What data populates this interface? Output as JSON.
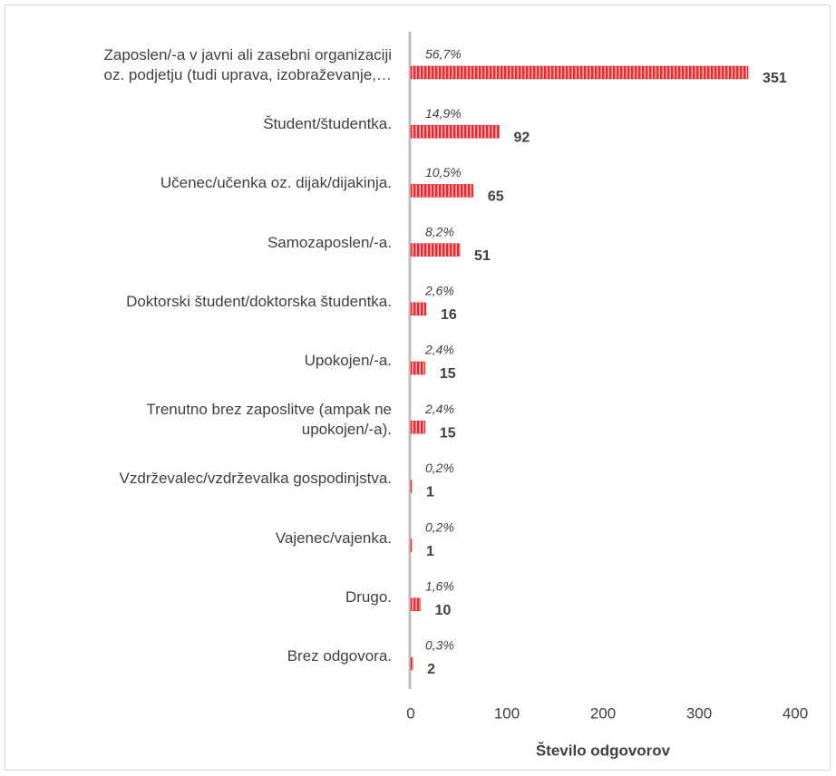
{
  "chart_data": {
    "type": "bar",
    "orientation": "horizontal",
    "categories": [
      "Zaposlen/-a v javni ali zasebni organizaciji\noz. podjetju (tudi uprava, izobraževanje,…",
      "Študent/študentka.",
      "Učenec/učenka oz. dijak/dijakinja.",
      "Samozaposlen/-a.",
      "Doktorski študent/doktorska študentka.",
      "Upokojen/-a.",
      "Trenutno brez zaposlitve (ampak ne\nupokojen/-a).",
      "Vzdrževalec/vzdrževalka gospodinjstva.",
      "Vajenec/vajenka.",
      "Drugo.",
      "Brez odgovora."
    ],
    "values": [
      351,
      92,
      65,
      51,
      16,
      15,
      15,
      1,
      1,
      10,
      2
    ],
    "percentages": [
      56.7,
      14.9,
      10.5,
      8.2,
      2.6,
      2.4,
      2.4,
      0.2,
      0.2,
      1.6,
      0.3
    ],
    "percentage_labels": [
      "56,7%",
      "14,9%",
      "10,5%",
      "8,2%",
      "2,6%",
      "2,4%",
      "2,4%",
      "0,2%",
      "0,2%",
      "1,6%",
      "0,3%"
    ],
    "color": "#e8292f",
    "xlim": [
      0,
      400
    ],
    "xticks": [
      0,
      100,
      200,
      300,
      400
    ],
    "x_label": "Število odgovorov",
    "grid": false
  }
}
